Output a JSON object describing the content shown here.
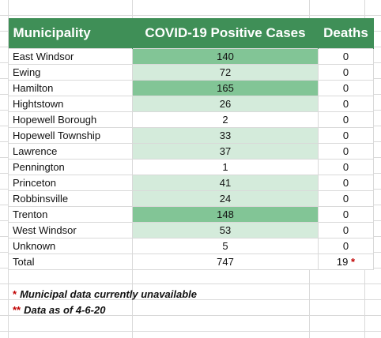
{
  "table": {
    "headers": {
      "municipality": "Municipality",
      "cases": "COVID-19 Positive Cases",
      "deaths": "Deaths"
    },
    "rows": [
      {
        "name": "East Windsor",
        "cases": "140",
        "deaths": "0",
        "level": "high"
      },
      {
        "name": "Ewing",
        "cases": "72",
        "deaths": "0",
        "level": "low"
      },
      {
        "name": "Hamilton",
        "cases": "165",
        "deaths": "0",
        "level": "high"
      },
      {
        "name": "Hightstown",
        "cases": "26",
        "deaths": "0",
        "level": "low"
      },
      {
        "name": "Hopewell Borough",
        "cases": "2",
        "deaths": "0",
        "level": "none"
      },
      {
        "name": "Hopewell Township",
        "cases": "33",
        "deaths": "0",
        "level": "low"
      },
      {
        "name": "Lawrence",
        "cases": "37",
        "deaths": "0",
        "level": "low"
      },
      {
        "name": "Pennington",
        "cases": "1",
        "deaths": "0",
        "level": "none"
      },
      {
        "name": "Princeton",
        "cases": "41",
        "deaths": "0",
        "level": "low"
      },
      {
        "name": "Robbinsville",
        "cases": "24",
        "deaths": "0",
        "level": "low"
      },
      {
        "name": "Trenton",
        "cases": "148",
        "deaths": "0",
        "level": "high"
      },
      {
        "name": "West Windsor",
        "cases": "53",
        "deaths": "0",
        "level": "low"
      },
      {
        "name": "Unknown",
        "cases": "5",
        "deaths": "0",
        "level": "none"
      }
    ],
    "total": {
      "label": "Total",
      "cases": "747",
      "deaths": "19",
      "deaths_marker": "*"
    }
  },
  "notes": [
    {
      "marker": "*",
      "text": "Municipal data currently unavailable"
    },
    {
      "marker": "**",
      "text": "Data as of 4-6-20"
    }
  ],
  "colors": {
    "header_bg": "#3f8f57",
    "high_fill": "#82c596",
    "low_fill": "#d4ebdb",
    "asterisk": "#c00000"
  }
}
